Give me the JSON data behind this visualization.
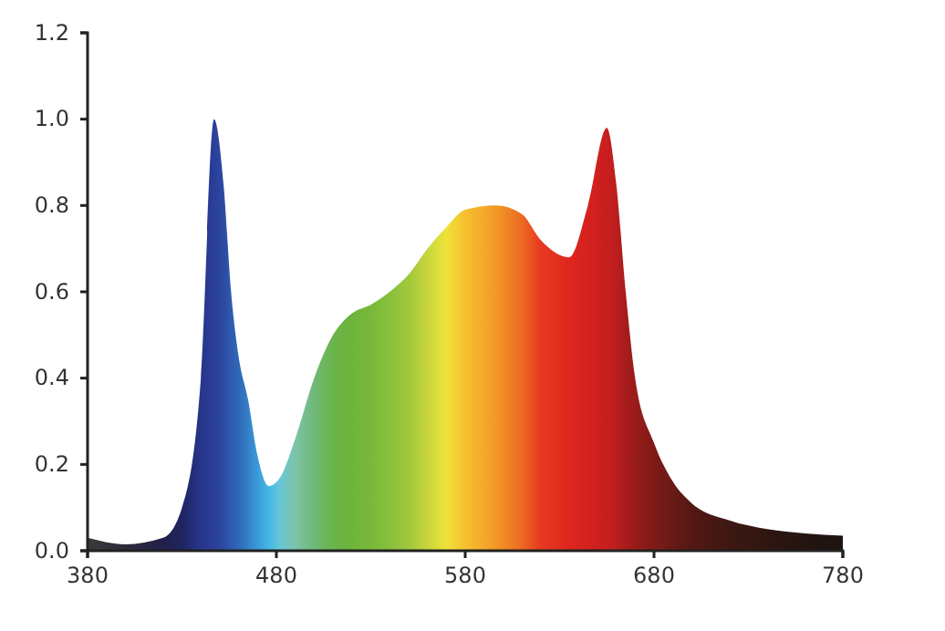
{
  "chart_data": {
    "type": "area",
    "x": [
      380,
      400,
      420,
      430,
      440,
      447,
      452,
      456,
      460,
      465,
      470,
      476,
      482,
      490,
      500,
      510,
      520,
      530,
      540,
      550,
      560,
      570,
      580,
      596,
      610,
      620,
      635,
      645,
      655,
      660,
      665,
      670,
      680,
      690,
      700,
      720,
      740,
      760,
      780
    ],
    "values": [
      0.03,
      0.015,
      0.03,
      0.1,
      0.4,
      1.0,
      0.85,
      0.6,
      0.45,
      0.35,
      0.22,
      0.15,
      0.17,
      0.26,
      0.4,
      0.5,
      0.55,
      0.57,
      0.6,
      0.64,
      0.7,
      0.75,
      0.79,
      0.8,
      0.78,
      0.72,
      0.68,
      0.8,
      0.98,
      0.85,
      0.6,
      0.4,
      0.25,
      0.16,
      0.11,
      0.07,
      0.05,
      0.04,
      0.035
    ],
    "colors": [
      "#3a3a3a",
      "#2e2a3a",
      "#22204a",
      "#1e2560",
      "#27358a",
      "#2a3f9a",
      "#2c4aa2",
      "#2f5ab0",
      "#3068b8",
      "#3580c8",
      "#3a9ad8",
      "#45b8e8",
      "#68c6d8",
      "#7cc4a8",
      "#70b878",
      "#6ab44a",
      "#6cb43a",
      "#78b83a",
      "#88c03c",
      "#a0c83c",
      "#c8d63c",
      "#eee23a",
      "#f6c030",
      "#f29a26",
      "#ec6a22",
      "#e63a20",
      "#e0261e",
      "#d4221e",
      "#c81e1e",
      "#bc1e1e",
      "#a81c1c",
      "#981c1a",
      "#801a18",
      "#681a16",
      "#541814",
      "#3e1812",
      "#2e1610",
      "#241410",
      "#1c1410"
    ],
    "xlim": [
      380,
      780
    ],
    "xticks": [
      380,
      480,
      580,
      680,
      780
    ],
    "ylim": [
      0,
      1.2
    ],
    "yticks": [
      {
        "value": 0,
        "label": "0.0"
      },
      {
        "value": 0.2,
        "label": "0.2"
      },
      {
        "value": 0.4,
        "label": "0.4"
      },
      {
        "value": 0.6,
        "label": "0.6"
      },
      {
        "value": 0.8,
        "label": "0.8"
      },
      {
        "value": 1.0,
        "label": "1.0"
      },
      {
        "value": 1.2,
        "label": "1.2"
      }
    ],
    "grid": false
  }
}
